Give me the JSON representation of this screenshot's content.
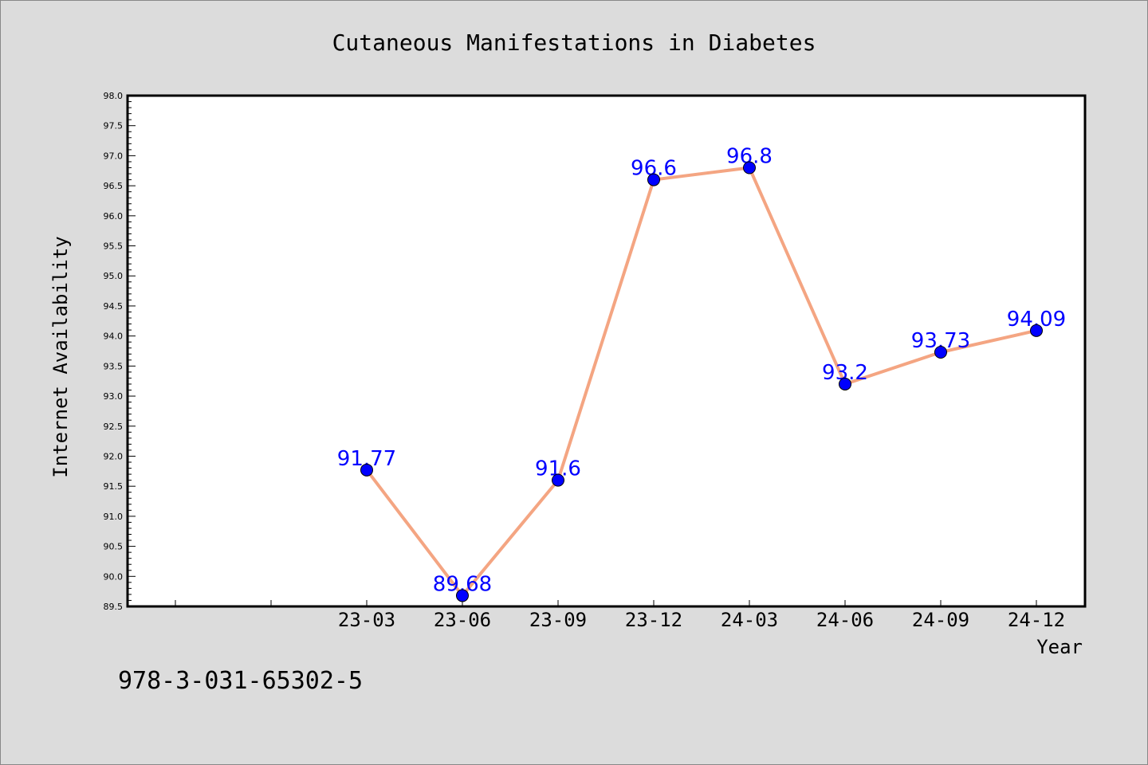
{
  "chart_data": {
    "type": "line",
    "title": "Cutaneous Manifestations in Diabetes",
    "xlabel": "Year",
    "ylabel": "Internet Availability",
    "categories": [
      "23-03",
      "23-06",
      "23-09",
      "23-12",
      "24-03",
      "24-06",
      "24-09",
      "24-12"
    ],
    "series": [
      {
        "values": [
          91.77,
          89.68,
          91.6,
          96.6,
          96.8,
          93.2,
          93.73,
          94.09
        ],
        "data_labels": [
          "91.77",
          "89.68",
          "91.6",
          "96.6",
          "96.8",
          "93.2",
          "93.73",
          "94.09"
        ]
      }
    ],
    "ylim": [
      89.5,
      98.0
    ],
    "yticks": [
      "89.5",
      "90.0",
      "90.5",
      "91.0",
      "91.5",
      "92.0",
      "92.5",
      "93.0",
      "93.5",
      "94.0",
      "94.5",
      "95.0",
      "95.5",
      "96.0",
      "96.5",
      "97.0",
      "97.5",
      "98.0"
    ],
    "grid": false,
    "line_color": "#f4a582",
    "marker_color": "#0000ff",
    "label_color": "#0000ff",
    "background_color": "#dcdcdc",
    "plot_background_color": "#ffffff"
  },
  "footer_text": "978-3-031-65302-5"
}
